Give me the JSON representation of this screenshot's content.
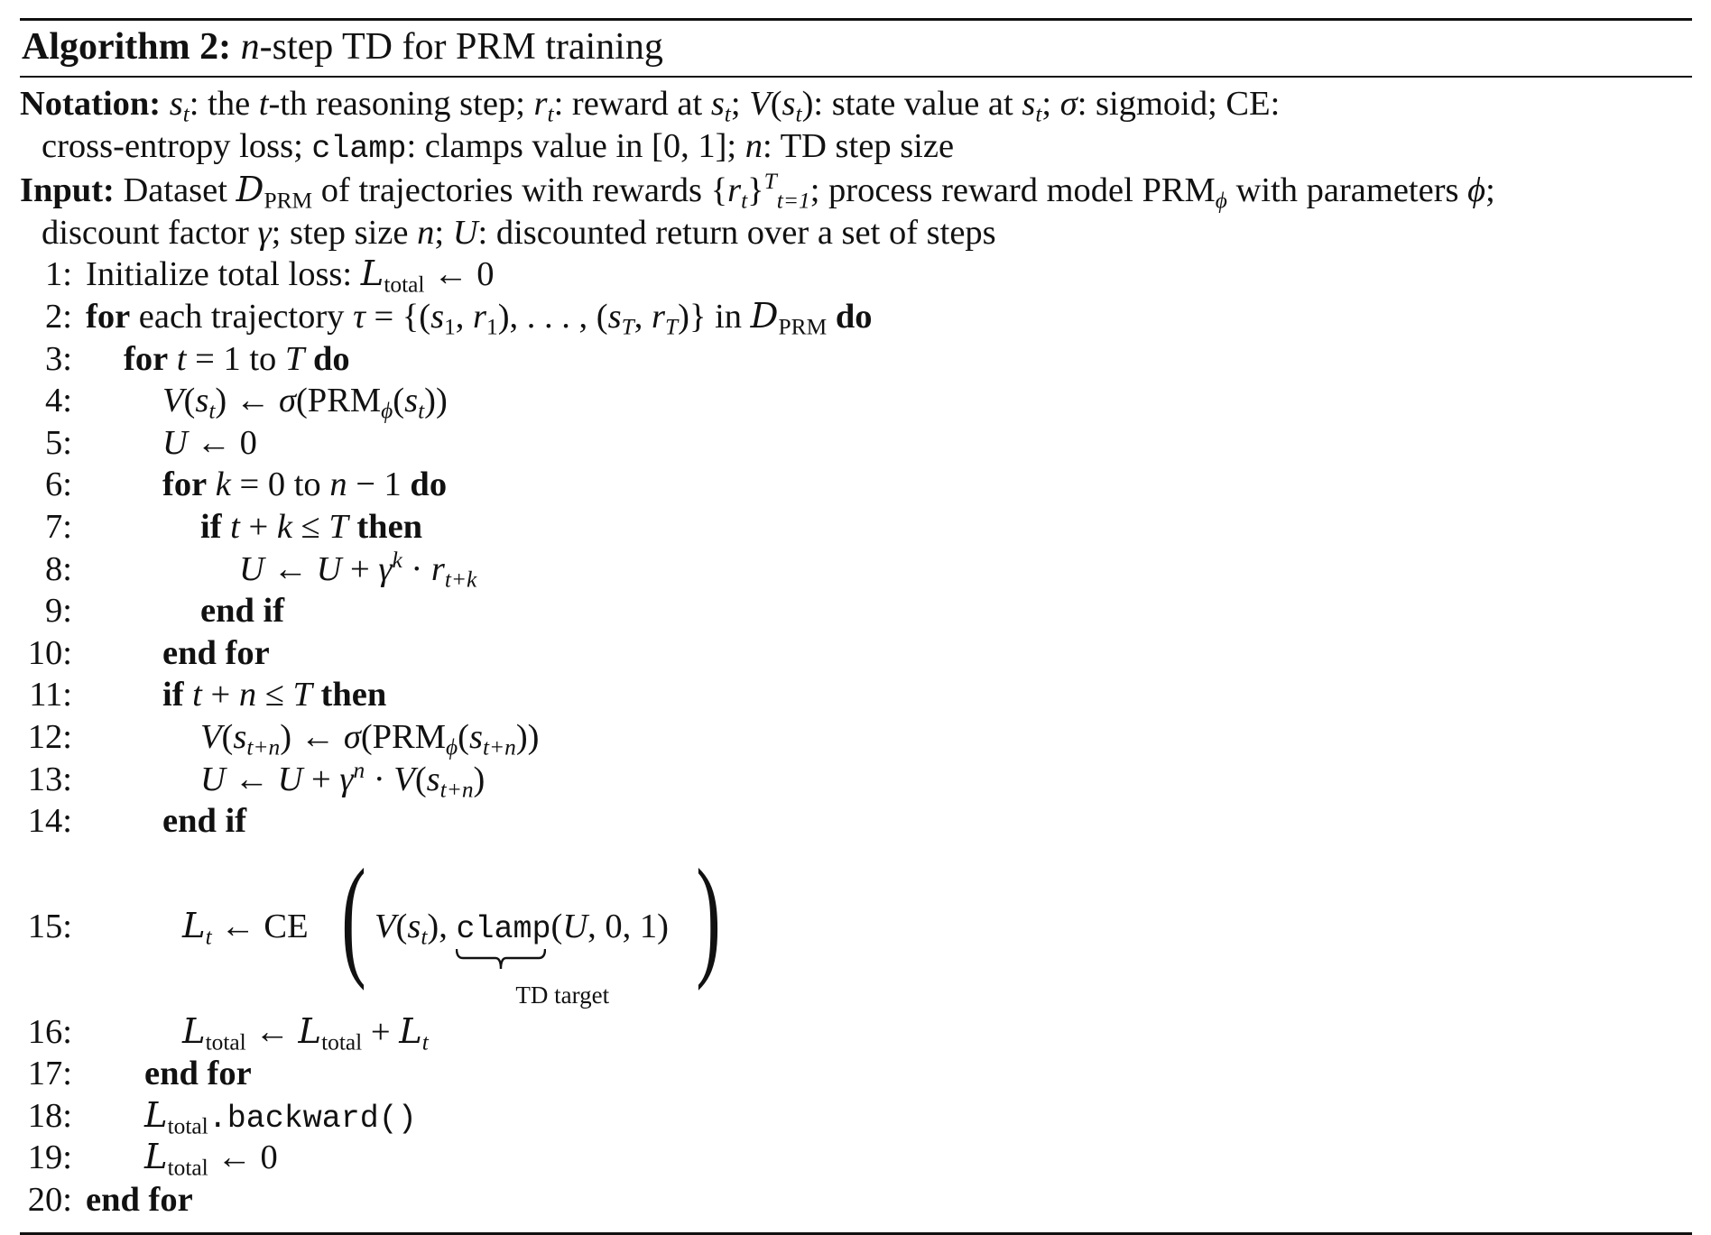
{
  "algorithm": {
    "label": "Algorithm 2:",
    "title_var": "n",
    "title_rest": "-step TD for PRM training"
  },
  "notation": {
    "label": "Notation:",
    "text1": "s",
    "text1_sub": "t",
    "text2": ": the ",
    "text3": "t",
    "text4": "-th reasoning step; ",
    "text5": "r",
    "text5_sub": "t",
    "text6": ": reward at ",
    "text7": "s",
    "text7_sub": "t",
    "text8": "; ",
    "text9": "V",
    "text10": "(",
    "text11": "s",
    "text11_sub": "t",
    "text12": "): state value at ",
    "text13": "s",
    "text13_sub": "t",
    "text14": "; ",
    "text15": "σ",
    "text16": ": sigmoid; CE:",
    "line2a": "cross-entropy loss; ",
    "line2_mono": "clamp",
    "line2b": ": clamps value in [0, 1]; ",
    "line2_n": "n",
    "line2c": ": TD step size"
  },
  "input": {
    "label": "Input:",
    "a": " Dataset ",
    "d": "D",
    "d_sub": "PRM",
    "b": " of trajectories with rewards ",
    "set_open": "{",
    "r": "r",
    "r_sub": "t",
    "set_close": "}",
    "set_sup": "T",
    "set_sub": "t=1",
    "c": "; process reward model PRM",
    "phi_sub": "ϕ",
    "e": " with parameters ",
    "phi": "ϕ",
    "f": ";",
    "line2a": "discount factor ",
    "gamma": "γ",
    "line2b": "; step size ",
    "n": "n",
    "line2c": "; ",
    "U": "U",
    "line2d": ": discounted return over a set of steps"
  },
  "lines": {
    "l1": {
      "num": "1:",
      "text": "Initialize total loss: ",
      "L": "L",
      "Lsub": "total",
      "rest": " ← 0"
    },
    "l2": {
      "num": "2:",
      "kw1": "for",
      "text": " each trajectory ",
      "tau": "τ",
      "eq": " = {(",
      "s1": "s",
      "s1sub": "1",
      "c1": ", ",
      "r1": "r",
      "r1sub": "1",
      "mid": "), . . . , (",
      "sT": "s",
      "sTsub": "T",
      "c2": ", ",
      "rT": "r",
      "rTsub": "T",
      "end": ")} in ",
      "D": "D",
      "Dsub": "PRM",
      "kw2": " do"
    },
    "l3": {
      "num": "3:",
      "kw1": "for",
      "t": " t",
      "eq": " = 1 to ",
      "T": "T",
      "kw2": " do"
    },
    "l4": {
      "num": "4:",
      "V": "V",
      "p1": "(",
      "s": "s",
      "ssub": "t",
      "p2": ") ← ",
      "sigma": "σ",
      "p3": "(PRM",
      "phi": "ϕ",
      "p4": "(",
      "s2": "s",
      "s2sub": "t",
      "p5": "))"
    },
    "l5": {
      "num": "5:",
      "U": "U",
      "rest": " ← 0"
    },
    "l6": {
      "num": "6:",
      "kw1": "for",
      "k": " k",
      "eq": " = 0 to ",
      "n": "n",
      "rest": " − 1",
      "kw2": " do"
    },
    "l7": {
      "num": "7:",
      "kw1": "if",
      "t": " t",
      "plus": " + ",
      "k": "k",
      "le": " ≤ ",
      "T": "T",
      "kw2": " then"
    },
    "l8": {
      "num": "8:",
      "U": "U",
      "arr": " ← ",
      "U2": "U",
      "plus": " + ",
      "gamma": "γ",
      "k": "k",
      "dot": " · ",
      "r": "r",
      "rsub": "t+k"
    },
    "l9": {
      "num": "9:",
      "kw": "end if"
    },
    "l10": {
      "num": "10:",
      "kw": "end for"
    },
    "l11": {
      "num": "11:",
      "kw1": "if",
      "t": " t",
      "plus": " + ",
      "n": "n",
      "le": " ≤ ",
      "T": "T",
      "kw2": " then"
    },
    "l12": {
      "num": "12:",
      "V": "V",
      "p1": "(",
      "s": "s",
      "ssub": "t+n",
      "p2": ") ← ",
      "sigma": "σ",
      "p3": "(PRM",
      "phi": "ϕ",
      "p4": "(",
      "s2": "s",
      "s2sub": "t+n",
      "p5": "))"
    },
    "l13": {
      "num": "13:",
      "U": "U",
      "arr": " ← ",
      "U2": "U",
      "plus": " + ",
      "gamma": "γ",
      "n": "n",
      "dot": " · ",
      "V": "V",
      "p1": "(",
      "s": "s",
      "ssub": "t+n",
      "p2": ")"
    },
    "l14": {
      "num": "14:",
      "kw": "end if"
    },
    "l15": {
      "num": "15:",
      "L": "L",
      "Lsub": "t",
      "arr": " ← CE",
      "lp": "(",
      "V": "V",
      "p1": "(",
      "s": "s",
      "ssub": "t",
      "p2": "), ",
      "clamp": "clamp",
      "args1": "(",
      "U": "U",
      "args2": ", 0, 1)",
      "rp": ")",
      "brace_label": "TD target"
    },
    "l16": {
      "num": "16:",
      "L": "L",
      "Lsub": "total",
      "arr": " ← ",
      "L2": "L",
      "L2sub": "total",
      "plus": " + ",
      "L3": "L",
      "L3sub": "t"
    },
    "l17": {
      "num": "17:",
      "kw": "end for"
    },
    "l18": {
      "num": "18:",
      "L": "L",
      "Lsub": "total",
      "call": ".backward()"
    },
    "l19": {
      "num": "19:",
      "L": "L",
      "Lsub": "total",
      "rest": " ← 0"
    },
    "l20": {
      "num": "20:",
      "kw": "end for"
    }
  }
}
